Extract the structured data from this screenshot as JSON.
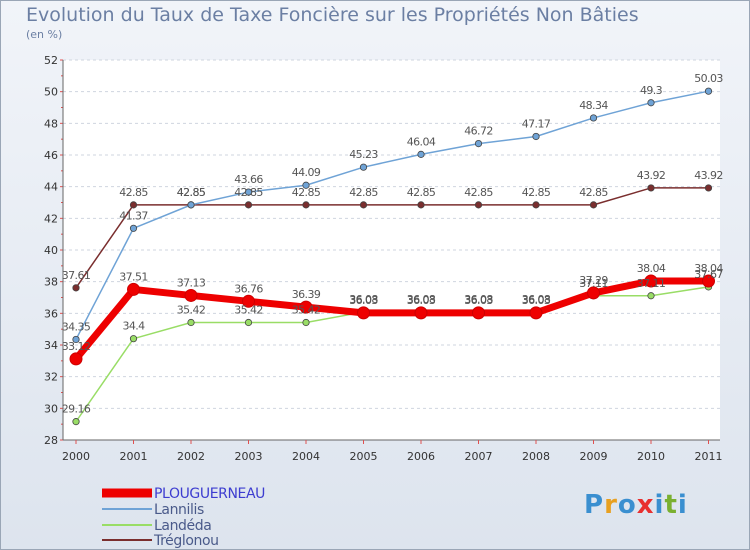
{
  "title": "Evolution du Taux de Taxe Foncière sur les Propriétés Non Bâties",
  "unit": "(en %)",
  "chart_data": {
    "type": "line",
    "title": "Evolution du Taux de Taxe Foncière sur les Propriétés Non Bâties",
    "ylabel": "(en %)",
    "xlabel": "",
    "x": [
      "2000",
      "2001",
      "2002",
      "2003",
      "2004",
      "2005",
      "2006",
      "2007",
      "2008",
      "2009",
      "2010",
      "2011"
    ],
    "ylim": [
      28,
      52
    ],
    "yticks": [
      28,
      30,
      32,
      34,
      36,
      38,
      40,
      42,
      44,
      46,
      48,
      50,
      52
    ],
    "grid": "horizontal dashed",
    "legend": "bottom-left",
    "series": [
      {
        "name": "PLOUGUERNEAU",
        "color": "#ee0000",
        "values": [
          33.12,
          37.51,
          37.13,
          36.76,
          36.39,
          36.03,
          36.03,
          36.03,
          36.03,
          37.29,
          38.04,
          38.04
        ],
        "labels": [
          "33.12",
          "37.51",
          "37.13",
          "36.76",
          "36.39",
          "36.03",
          "36.03",
          "36.03",
          "36.03",
          "37.29",
          "38.04",
          "38.04"
        ]
      },
      {
        "name": "Lannilis",
        "color": "#6fa3d6",
        "values": [
          34.35,
          41.37,
          42.85,
          43.66,
          44.09,
          45.23,
          46.04,
          46.72,
          47.17,
          48.34,
          49.3,
          50.03
        ],
        "labels": [
          "34.35",
          "41.37",
          "42.85",
          "43.66",
          "44.09",
          "45.23",
          "46.04",
          "46.72",
          "47.17",
          "48.34",
          "49.3",
          "50.03"
        ]
      },
      {
        "name": "Landéda",
        "color": "#99dd66",
        "values": [
          29.16,
          34.4,
          35.42,
          35.42,
          35.42,
          36.08,
          36.08,
          36.08,
          36.08,
          37.11,
          37.11,
          37.67
        ],
        "labels": [
          "29.16",
          "34.4",
          "35.42",
          "35.42",
          "35.42",
          "36.08",
          "36.08",
          "36.08",
          "36.08",
          "37.11",
          "37.11",
          "37.67"
        ]
      },
      {
        "name": "Tréglonou",
        "color": "#7a2e2e",
        "values": [
          37.61,
          42.85,
          42.85,
          42.85,
          42.85,
          42.85,
          42.85,
          42.85,
          42.85,
          42.85,
          43.92,
          43.92
        ],
        "labels": [
          "37.61",
          "42.85",
          "42.85",
          "42.85",
          "42.85",
          "42.85",
          "42.85",
          "42.85",
          "42.85",
          "42.85",
          "43.92",
          "43.92"
        ]
      }
    ]
  },
  "logo": {
    "text": "Proxiti",
    "colors": [
      "#3a8fd0",
      "#e8a020",
      "#3a8fd0",
      "#e83030",
      "#3a8fd0",
      "#7ab030",
      "#3a8fd0"
    ]
  }
}
